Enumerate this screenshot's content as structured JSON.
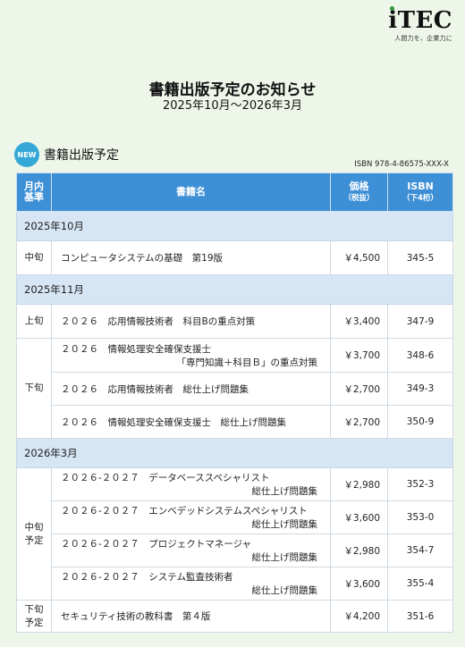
{
  "brand": {
    "logo": "iTEC",
    "tagline": "人間力を、企業力に"
  },
  "header": {
    "title": "書籍出版予定のお知らせ",
    "period": "2025年10月～2026年3月"
  },
  "section": {
    "badge": "NEW",
    "title": "書籍出版予定",
    "isbn_prefix": "ISBN 978-4-86575-XXX-X"
  },
  "table": {
    "headers": {
      "period_l1": "月内",
      "period_l2": "基準",
      "name": "書籍名",
      "price_l1": "価格",
      "price_l2": "（税抜）",
      "isbn_l1": "ISBN",
      "isbn_l2": "（下4桁）"
    },
    "groups": [
      {
        "label": "2025年10月",
        "rows": [
          {
            "period": "中旬",
            "name_l1": "コンピュータシステムの基礎　第19版",
            "name_l2": "",
            "price": "￥4,500",
            "isbn": "345-5"
          }
        ]
      },
      {
        "label": "2025年11月",
        "rows": [
          {
            "period": "上旬",
            "name_l1": "２０２６　応用情報技術者　科目Bの重点対策",
            "name_l2": "",
            "price": "￥3,400",
            "isbn": "347-9"
          },
          {
            "period": "下旬",
            "name_l1": "２０２６　情報処理安全確保支援士",
            "name_l2": "「専門知識＋科目Ｂ」の重点対策",
            "price": "￥3,700",
            "isbn": "348-6"
          },
          {
            "period": "",
            "name_l1": "２０２６　応用情報技術者　総仕上げ問題集",
            "name_l2": "",
            "price": "￥2,700",
            "isbn": "349-3"
          },
          {
            "period": "",
            "name_l1": "２０２６　情報処理安全確保支援士　総仕上げ問題集",
            "name_l2": "",
            "price": "￥2,700",
            "isbn": "350-9"
          }
        ]
      },
      {
        "label": "2026年3月",
        "rows": [
          {
            "period_l1": "中旬",
            "period_l2": "予定",
            "name_l1": "２０２６-２０２７　データベーススペシャリスト",
            "name_l2": "総仕上げ問題集",
            "price": "￥2,980",
            "isbn": "352-3"
          },
          {
            "name_l1": "２０２６-２０２７　エンベデッドシステムスペシャリスト",
            "name_l2": "総仕上げ問題集",
            "price": "￥3,600",
            "isbn": "353-0"
          },
          {
            "name_l1": "２０２６-２０２７　プロジェクトマネージャ",
            "name_l2": "総仕上げ問題集",
            "price": "￥2,980",
            "isbn": "354-7"
          },
          {
            "name_l1": "２０２６-２０２７　システム監査技術者",
            "name_l2": "総仕上げ問題集",
            "price": "￥3,600",
            "isbn": "355-4"
          },
          {
            "period_l1": "下旬",
            "period_l2": "予定",
            "name_l1": "セキュリティ技術の教科書　第４版",
            "name_l2": "",
            "price": "￥4,200",
            "isbn": "351-6"
          }
        ]
      }
    ]
  }
}
